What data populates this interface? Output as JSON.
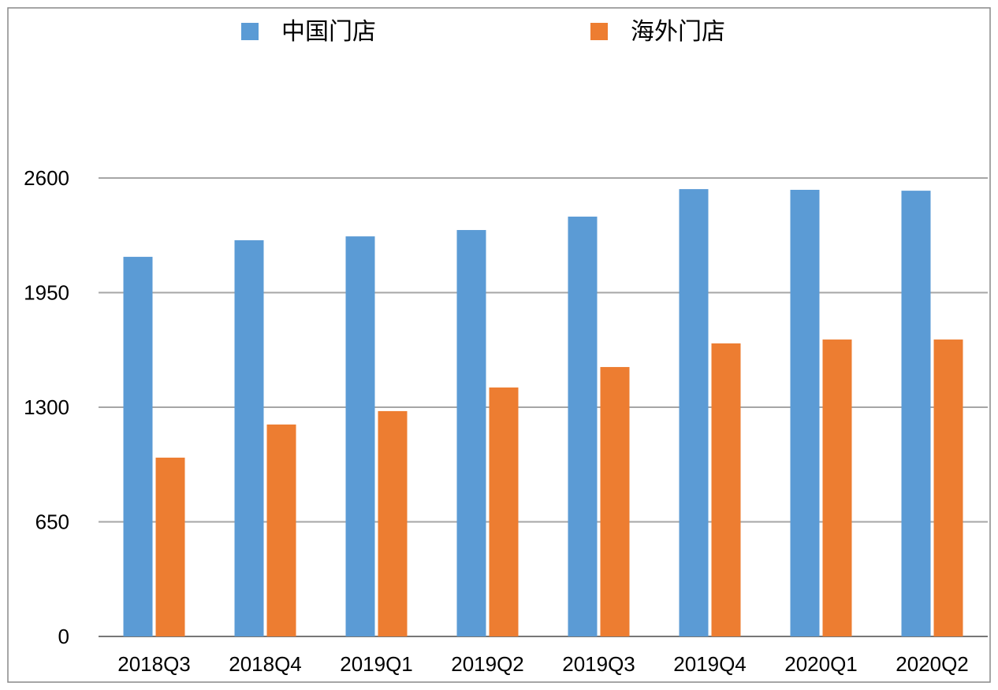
{
  "chart_data": {
    "type": "bar",
    "title": "",
    "xlabel": "",
    "ylabel": "",
    "categories": [
      "2018Q3",
      "2018Q4",
      "2019Q1",
      "2019Q2",
      "2019Q3",
      "2019Q4",
      "2020Q1",
      "2020Q2"
    ],
    "series": [
      {
        "name": "中国门店",
        "color": "#5b9bd5",
        "values": [
          2153,
          2247,
          2269,
          2305,
          2381,
          2537,
          2533,
          2528
        ]
      },
      {
        "name": "海外门店",
        "color": "#ed7d31",
        "values": [
          1014,
          1202,
          1278,
          1412,
          1528,
          1662,
          1684,
          1684
        ]
      }
    ],
    "ylim": [
      0,
      2600
    ],
    "yticks": [
      "0",
      "650",
      "1300",
      "1950",
      "2600"
    ],
    "ytick_values": [
      0,
      650,
      1300,
      1950,
      2600
    ],
    "grid": true,
    "legend": "top"
  }
}
